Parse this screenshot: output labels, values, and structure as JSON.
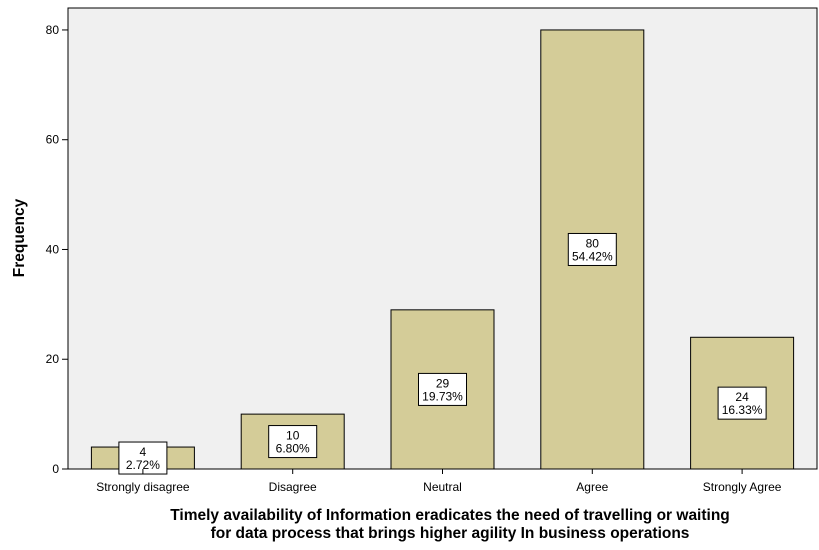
{
  "chart_data": {
    "type": "bar",
    "categories": [
      "Strongly disagree",
      "Disagree",
      "Neutral",
      "Agree",
      "Strongly Agree"
    ],
    "values": [
      4,
      10,
      29,
      80,
      24
    ],
    "value_labels": [
      "4",
      "10",
      "29",
      "80",
      "24"
    ],
    "percent_labels": [
      "2.72%",
      "6.80%",
      "19.73%",
      "54.42%",
      "16.33%"
    ],
    "xlabel_lines": [
      "Timely availability of Information eradicates the need of travelling or waiting",
      "for data process that brings higher agility In business operations"
    ],
    "ylabel": "Frequency",
    "ylim": [
      0,
      84
    ],
    "yticks": [
      0,
      20,
      40,
      60,
      80
    ],
    "grid": false,
    "colors": {
      "bar_fill": "#d4cc98",
      "bar_stroke": "#000000",
      "plot_background": "#f0f0f0",
      "label_box": "#ffffff"
    }
  }
}
